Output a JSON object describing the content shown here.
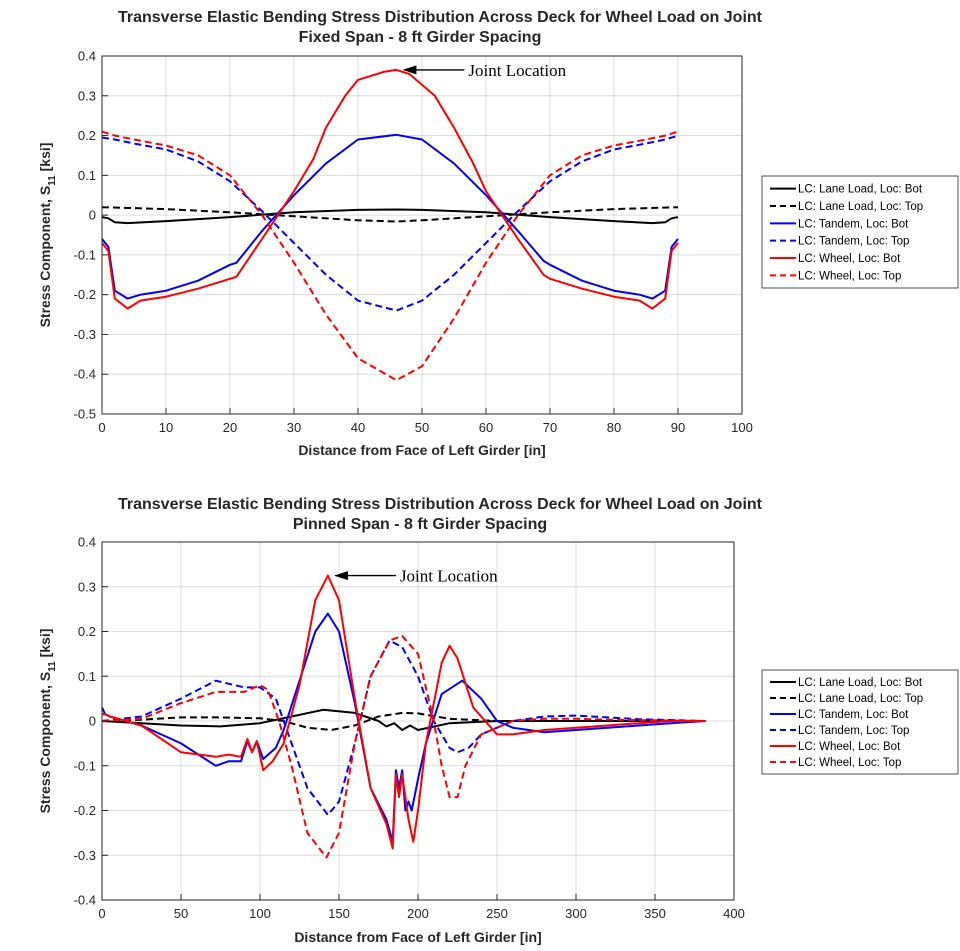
{
  "chart_data": [
    {
      "type": "line",
      "title": "Transverse Elastic Bending Stress Distribution Across Deck for Wheel Load on Joint",
      "subtitle": "Fixed Span - 8 ft Girder Spacing",
      "xlabel": "Distance from Face of Left Girder [in]",
      "ylabel_main": "Stress Component, S",
      "ylabel_sub": "11",
      "ylabel_unit": " [ksi]",
      "xlim": [
        0,
        100
      ],
      "ylim": [
        -0.5,
        0.4
      ],
      "xticks": [
        0,
        10,
        20,
        30,
        40,
        50,
        60,
        70,
        80,
        90,
        100
      ],
      "yticks": [
        -0.5,
        -0.4,
        -0.3,
        -0.2,
        -0.1,
        0,
        0.1,
        0.2,
        0.3,
        0.4
      ],
      "xtick_labels": [
        "0",
        "10",
        "20",
        "30",
        "40",
        "50",
        "60",
        "70",
        "80",
        "90",
        "100"
      ],
      "ytick_labels": [
        "-0.5",
        "-0.4",
        "-0.3",
        "-0.2",
        "-0.1",
        "0",
        "0.1",
        "0.2",
        "0.3",
        "0.4"
      ],
      "grid": true,
      "legend_position": "outside-right",
      "annotation": {
        "text": "Joint Location",
        "x": 46,
        "y": 0.365
      },
      "series": [
        {
          "name": "LC: Lane Load, Loc: Bot",
          "color": "#000000",
          "dash": "solid",
          "x": [
            0,
            1,
            2,
            4,
            10,
            20,
            30,
            40,
            46,
            50,
            60,
            70,
            80,
            86,
            88,
            89,
            90
          ],
          "y": [
            -0.005,
            -0.008,
            -0.018,
            -0.02,
            -0.015,
            -0.005,
            0.007,
            0.013,
            0.014,
            0.013,
            0.007,
            -0.005,
            -0.015,
            -0.02,
            -0.018,
            -0.008,
            -0.005
          ]
        },
        {
          "name": "LC: Lane Load, Loc: Top",
          "color": "#000000",
          "dash": "dashed",
          "x": [
            0,
            10,
            20,
            30,
            40,
            46,
            50,
            60,
            70,
            80,
            90
          ],
          "y": [
            0.02,
            0.015,
            0.007,
            -0.003,
            -0.013,
            -0.016,
            -0.013,
            -0.003,
            0.007,
            0.015,
            0.02
          ]
        },
        {
          "name": "LC: Tandem, Loc: Bot",
          "color": "#0000ff",
          "dash": "solid",
          "x": [
            0,
            1,
            2,
            4,
            6,
            10,
            15,
            20,
            21,
            25,
            30,
            35,
            40,
            46,
            50,
            55,
            60,
            65,
            69,
            70,
            75,
            80,
            84,
            86,
            88,
            89,
            90
          ],
          "y": [
            -0.06,
            -0.08,
            -0.19,
            -0.21,
            -0.2,
            -0.19,
            -0.165,
            -0.125,
            -0.12,
            -0.04,
            0.05,
            0.13,
            0.19,
            0.202,
            0.19,
            0.13,
            0.05,
            -0.04,
            -0.115,
            -0.125,
            -0.165,
            -0.19,
            -0.2,
            -0.21,
            -0.19,
            -0.08,
            -0.06
          ]
        },
        {
          "name": "LC: Tandem, Loc: Top",
          "color": "#0000ff",
          "dash": "dashed",
          "x": [
            0,
            2,
            5,
            10,
            15,
            20,
            25,
            30,
            35,
            40,
            46,
            50,
            55,
            60,
            65,
            70,
            75,
            80,
            85,
            88,
            90
          ],
          "y": [
            0.195,
            0.19,
            0.18,
            0.165,
            0.135,
            0.085,
            0.01,
            -0.07,
            -0.15,
            -0.215,
            -0.24,
            -0.215,
            -0.15,
            -0.07,
            0.01,
            0.085,
            0.135,
            0.165,
            0.18,
            0.19,
            0.2
          ]
        },
        {
          "name": "LC: Wheel, Loc: Bot",
          "color": "#ff0000",
          "dash": "solid",
          "x": [
            0,
            1,
            2,
            4,
            6,
            10,
            15,
            20,
            21,
            25,
            30,
            33,
            35,
            38,
            40,
            44,
            46,
            48,
            52,
            55,
            58,
            60,
            65,
            69,
            70,
            75,
            80,
            84,
            86,
            88,
            89,
            90
          ],
          "y": [
            -0.07,
            -0.09,
            -0.21,
            -0.235,
            -0.215,
            -0.205,
            -0.185,
            -0.16,
            -0.155,
            -0.06,
            0.06,
            0.14,
            0.22,
            0.3,
            0.34,
            0.36,
            0.365,
            0.355,
            0.3,
            0.22,
            0.13,
            0.06,
            -0.06,
            -0.15,
            -0.16,
            -0.185,
            -0.205,
            -0.215,
            -0.235,
            -0.21,
            -0.09,
            -0.07
          ]
        },
        {
          "name": "LC: Wheel, Loc: Top",
          "color": "#ff0000",
          "dash": "dashed",
          "x": [
            0,
            2,
            5,
            10,
            15,
            20,
            25,
            30,
            35,
            40,
            46,
            50,
            55,
            60,
            65,
            70,
            75,
            80,
            85,
            88,
            90
          ],
          "y": [
            0.21,
            0.2,
            0.19,
            0.175,
            0.15,
            0.1,
            0.0,
            -0.12,
            -0.25,
            -0.36,
            -0.415,
            -0.38,
            -0.26,
            -0.12,
            0.0,
            0.1,
            0.15,
            0.175,
            0.19,
            0.2,
            0.21
          ]
        }
      ]
    },
    {
      "type": "line",
      "title": "Transverse Elastic Bending Stress Distribution Across Deck for Wheel Load on Joint",
      "subtitle": "Pinned Span - 8 ft Girder Spacing",
      "xlabel": "Distance from Face of Left Girder [in]",
      "ylabel_main": "Stress Component, S",
      "ylabel_sub": "11",
      "ylabel_unit": " [ksi]",
      "xlim": [
        0,
        400
      ],
      "ylim": [
        -0.4,
        0.4
      ],
      "xticks": [
        0,
        50,
        100,
        150,
        200,
        250,
        300,
        350,
        400
      ],
      "yticks": [
        -0.4,
        -0.3,
        -0.2,
        -0.1,
        0,
        0.1,
        0.2,
        0.3,
        0.4
      ],
      "xtick_labels": [
        "0",
        "50",
        "100",
        "150",
        "200",
        "250",
        "300",
        "350",
        "400"
      ],
      "ytick_labels": [
        "-0.4",
        "-0.3",
        "-0.2",
        "-0.1",
        "0",
        "0.1",
        "0.2",
        "0.3",
        "0.4"
      ],
      "grid": true,
      "legend_position": "outside-right",
      "annotation": {
        "text": "Joint Location",
        "x": 143,
        "y": 0.325
      },
      "series": [
        {
          "name": "LC: Lane Load, Loc: Bot",
          "color": "#000000",
          "dash": "solid",
          "x": [
            0,
            25,
            50,
            75,
            100,
            120,
            140,
            160,
            175,
            180,
            185,
            190,
            195,
            200,
            220,
            250,
            300,
            350,
            382
          ],
          "y": [
            0.0,
            -0.005,
            -0.01,
            -0.012,
            -0.005,
            0.01,
            0.025,
            0.018,
            0.0,
            -0.012,
            -0.005,
            -0.02,
            -0.01,
            -0.02,
            -0.005,
            0.0,
            0.0,
            0.0,
            0.0
          ]
        },
        {
          "name": "LC: Lane Load, Loc: Top",
          "color": "#000000",
          "dash": "dashed",
          "x": [
            0,
            25,
            50,
            75,
            100,
            115,
            130,
            145,
            160,
            175,
            190,
            200,
            220,
            250,
            300,
            350,
            382
          ],
          "y": [
            0.0,
            0.003,
            0.008,
            0.008,
            0.006,
            0.0,
            -0.015,
            -0.02,
            -0.01,
            0.01,
            0.018,
            0.017,
            0.005,
            0.0,
            0.0,
            0.0,
            0.0
          ]
        },
        {
          "name": "LC: Tandem, Loc: Bot",
          "color": "#0000ff",
          "dash": "solid",
          "x": [
            0,
            2,
            5,
            25,
            50,
            72,
            80,
            88,
            92,
            95,
            98,
            102,
            110,
            115,
            125,
            135,
            143,
            150,
            160,
            170,
            180,
            184,
            186,
            188,
            190,
            192,
            194,
            196,
            200,
            205,
            215,
            228,
            240,
            250,
            260,
            280,
            300,
            320,
            340,
            360,
            382
          ],
          "y": [
            0.03,
            0.015,
            0.01,
            -0.01,
            -0.05,
            -0.1,
            -0.09,
            -0.09,
            -0.045,
            -0.07,
            -0.045,
            -0.085,
            -0.06,
            -0.02,
            0.09,
            0.2,
            0.24,
            0.2,
            0.04,
            -0.15,
            -0.22,
            -0.27,
            -0.11,
            -0.15,
            -0.11,
            -0.2,
            -0.18,
            -0.2,
            -0.13,
            -0.05,
            0.06,
            0.09,
            0.05,
            0.0,
            -0.015,
            -0.025,
            -0.02,
            -0.015,
            -0.01,
            -0.005,
            0.0
          ]
        },
        {
          "name": "LC: Tandem, Loc: Top",
          "color": "#0000ff",
          "dash": "dashed",
          "x": [
            0,
            25,
            50,
            72,
            90,
            100,
            110,
            120,
            130,
            143,
            150,
            160,
            170,
            182,
            190,
            200,
            210,
            220,
            225,
            232,
            240,
            260,
            280,
            300,
            320,
            340,
            382
          ],
          "y": [
            0.0,
            0.01,
            0.05,
            0.09,
            0.075,
            0.075,
            0.05,
            -0.05,
            -0.15,
            -0.21,
            -0.18,
            -0.05,
            0.1,
            0.18,
            0.165,
            0.1,
            0.0,
            -0.06,
            -0.07,
            -0.06,
            -0.03,
            0.0,
            0.01,
            0.012,
            0.008,
            0.004,
            0.0
          ]
        },
        {
          "name": "LC: Wheel, Loc: Bot",
          "color": "#ff0000",
          "dash": "solid",
          "x": [
            0,
            2,
            5,
            25,
            50,
            72,
            80,
            88,
            92,
            95,
            98,
            102,
            108,
            115,
            125,
            135,
            143,
            150,
            160,
            170,
            180,
            184,
            186,
            188,
            190,
            192,
            194,
            197,
            200,
            205,
            215,
            220,
            225,
            235,
            250,
            260,
            280,
            300,
            320,
            340,
            360,
            382
          ],
          "y": [
            0.015,
            0.015,
            0.01,
            -0.01,
            -0.07,
            -0.08,
            -0.075,
            -0.08,
            -0.04,
            -0.07,
            -0.045,
            -0.11,
            -0.09,
            -0.05,
            0.08,
            0.27,
            0.325,
            0.27,
            0.05,
            -0.15,
            -0.23,
            -0.285,
            -0.12,
            -0.17,
            -0.12,
            -0.17,
            -0.22,
            -0.27,
            -0.2,
            -0.05,
            0.13,
            0.168,
            0.14,
            0.03,
            -0.03,
            -0.03,
            -0.02,
            -0.015,
            -0.01,
            -0.005,
            0.0,
            0.0
          ]
        },
        {
          "name": "LC: Wheel, Loc: Top",
          "color": "#ff0000",
          "dash": "dashed",
          "x": [
            0,
            25,
            50,
            72,
            90,
            100,
            105,
            112,
            120,
            130,
            142,
            150,
            160,
            170,
            182,
            190,
            200,
            210,
            215,
            220,
            225,
            230,
            240,
            260,
            280,
            300,
            320,
            340,
            382
          ],
          "y": [
            0.0,
            0.005,
            0.04,
            0.065,
            0.065,
            0.08,
            0.07,
            0.0,
            -0.1,
            -0.25,
            -0.305,
            -0.25,
            -0.05,
            0.1,
            0.18,
            0.19,
            0.15,
            0.0,
            -0.1,
            -0.17,
            -0.17,
            -0.1,
            -0.03,
            0.0,
            0.005,
            0.005,
            0.003,
            0.002,
            0.0
          ]
        }
      ]
    }
  ]
}
